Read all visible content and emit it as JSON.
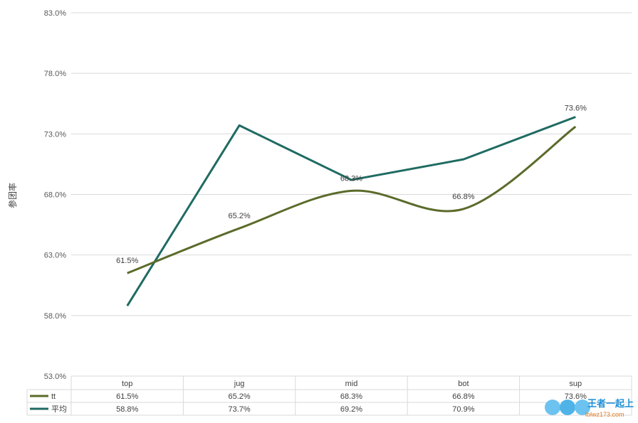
{
  "chart_data": {
    "type": "line",
    "title": "",
    "xlabel": "",
    "ylabel": "参团率",
    "categories": [
      "top",
      "jug",
      "mid",
      "bot",
      "sup"
    ],
    "ylim": [
      53.0,
      83.0
    ],
    "yticks": [
      "53.0%",
      "58.0%",
      "63.0%",
      "68.0%",
      "73.0%",
      "78.0%",
      "83.0%"
    ],
    "grid": true,
    "legend": "data-table-bottom",
    "series": [
      {
        "name": "tt",
        "color": "#5b6b2a",
        "smooth": true,
        "values": [
          61.5,
          65.2,
          68.3,
          66.8,
          73.6
        ],
        "data_labels": [
          "61.5%",
          "65.2%",
          "68.3%",
          "66.8%",
          "73.6%"
        ],
        "table_values": [
          "61.5%",
          "65.2%",
          "68.3%",
          "66.8%",
          "73.6%"
        ]
      },
      {
        "name": "平均",
        "color": "#1f6b62",
        "smooth": false,
        "values": [
          58.8,
          73.7,
          69.2,
          70.9,
          74.4
        ],
        "table_values": [
          "58.8%",
          "73.7%",
          "69.2%",
          "70.9%",
          ""
        ]
      }
    ]
  },
  "watermark": {
    "logo": "LOL",
    "text": "王者一起上",
    "url": "lolwz173.com"
  }
}
